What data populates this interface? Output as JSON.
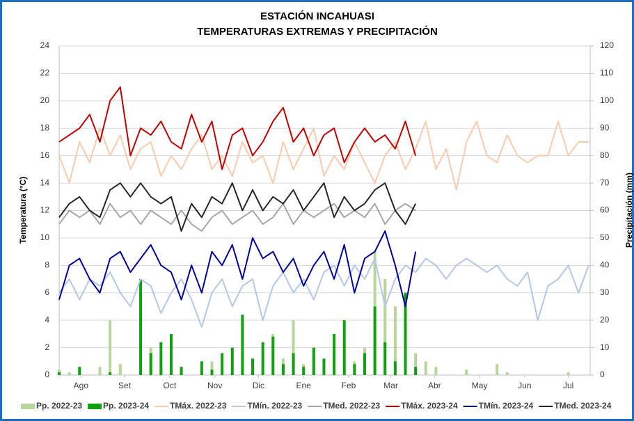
{
  "chart_data": {
    "type": "line",
    "title": "ESTACIÓN INCAHUASI",
    "subtitle": "TEMPERATURAS EXTREMAS Y PRECIPITACIÓN",
    "y_label": "Temperatura (°C)",
    "y2_label": "Precipitación (mm)",
    "x": [
      0,
      7,
      14,
      21,
      28,
      35,
      42,
      49,
      56,
      63,
      70,
      77,
      84,
      91,
      98,
      105,
      112,
      119,
      126,
      133,
      140,
      147,
      154,
      161,
      168,
      175,
      182,
      189,
      196,
      203,
      210,
      217,
      224,
      231,
      238,
      245,
      252,
      259,
      266,
      273,
      280,
      287,
      294,
      301,
      308,
      315,
      322,
      329,
      336,
      343,
      350,
      357,
      364
    ],
    "xlim": [
      0,
      365
    ],
    "xticks": [
      {
        "value": 15,
        "label": "Ago"
      },
      {
        "value": 45,
        "label": "Set"
      },
      {
        "value": 76,
        "label": "Oct"
      },
      {
        "value": 107,
        "label": "Nov"
      },
      {
        "value": 137,
        "label": "Dic"
      },
      {
        "value": 168,
        "label": "Ene"
      },
      {
        "value": 199,
        "label": "Feb"
      },
      {
        "value": 228,
        "label": "Mar"
      },
      {
        "value": 258,
        "label": "Abr"
      },
      {
        "value": 289,
        "label": "May"
      },
      {
        "value": 320,
        "label": "Jun"
      },
      {
        "value": 350,
        "label": "Jul"
      }
    ],
    "ylim": [
      0,
      24
    ],
    "yticks": [
      0,
      2,
      4,
      6,
      8,
      10,
      12,
      14,
      16,
      18,
      20,
      22,
      24
    ],
    "y2lim": [
      0,
      120
    ],
    "y2ticks": [
      0,
      10,
      20,
      30,
      40,
      50,
      60,
      70,
      80,
      90,
      100,
      110,
      120
    ],
    "grid": true,
    "legend": "bottom",
    "series": [
      {
        "name": "Pp. 2022-23",
        "type": "bar",
        "axis": "y2",
        "color": "#b8d59c",
        "values": [
          2,
          1,
          0,
          0,
          3,
          20,
          4,
          0,
          2,
          10,
          3,
          0,
          1,
          0,
          2,
          5,
          0,
          1,
          3,
          0,
          2,
          15,
          6,
          20,
          4,
          2,
          0,
          8,
          3,
          5,
          10,
          45,
          35,
          25,
          12,
          8,
          5,
          3,
          0,
          0,
          2,
          0,
          0,
          4,
          1,
          0,
          0,
          0,
          0,
          0,
          1,
          0,
          0
        ]
      },
      {
        "name": "Pp. 2023-24",
        "type": "bar",
        "axis": "y2",
        "color": "#12a012",
        "values": [
          1,
          0,
          3,
          0,
          0,
          1,
          0,
          0,
          35,
          8,
          12,
          15,
          3,
          0,
          5,
          2,
          8,
          10,
          22,
          6,
          12,
          14,
          4,
          8,
          3,
          10,
          6,
          15,
          20,
          4,
          8,
          25,
          12,
          5,
          30,
          3,
          null,
          null,
          null,
          null,
          null,
          null,
          null,
          null,
          null,
          null,
          null,
          null,
          null,
          null,
          null,
          null,
          null
        ]
      },
      {
        "name": "TMáx. 2022-23",
        "type": "line",
        "color": "#f8cbad",
        "values": [
          16,
          14,
          17,
          15.5,
          18,
          16,
          17.5,
          15,
          16.5,
          17,
          14.5,
          16,
          15,
          16.5,
          17.5,
          15,
          16,
          14.5,
          17,
          15.5,
          16,
          14,
          17,
          15,
          16.5,
          18,
          14.5,
          16,
          15,
          17,
          15.5,
          14,
          16,
          17,
          15,
          16.5,
          18.5,
          15,
          16.5,
          13.5,
          17,
          18.5,
          16,
          15.5,
          17.5,
          16,
          15.5,
          16,
          16,
          18.5,
          16,
          17,
          17
        ]
      },
      {
        "name": "TMín. 2022-23",
        "type": "line",
        "color": "#b4c7e7",
        "values": [
          6,
          7,
          5.5,
          7,
          6.5,
          7.5,
          6,
          5,
          7,
          6.5,
          4.5,
          6,
          7,
          5.5,
          3.5,
          6,
          7,
          5,
          6.5,
          7,
          4,
          6.5,
          7.5,
          6,
          7,
          5.5,
          7.5,
          8,
          6.5,
          8,
          7,
          8.5,
          5,
          7,
          8,
          7.5,
          8.5,
          8,
          7,
          8,
          8.5,
          8,
          7.5,
          8,
          7,
          6.5,
          7.5,
          4,
          6.5,
          7,
          8,
          6,
          8
        ]
      },
      {
        "name": "TMed. 2022-23",
        "type": "line",
        "color": "#a6a6a6",
        "values": [
          11,
          12,
          11.5,
          12,
          11,
          12.5,
          11.5,
          12,
          11,
          12,
          11.5,
          11,
          12,
          11,
          10.5,
          11.5,
          12,
          11,
          11.5,
          12,
          11,
          11.5,
          12.5,
          11,
          12,
          11.5,
          12,
          12.5,
          11.5,
          12,
          11.5,
          12.5,
          11,
          12,
          12.5,
          12,
          null,
          null,
          null,
          null,
          null,
          null,
          null,
          null,
          null,
          null,
          null,
          null,
          null,
          null,
          null,
          null,
          null
        ]
      },
      {
        "name": "TMáx. 2023-24",
        "type": "line",
        "color": "#c00000",
        "values": [
          17,
          17.5,
          18,
          19,
          17,
          20,
          21,
          16,
          18,
          17.5,
          18.5,
          17,
          16.5,
          19,
          17,
          18.5,
          15,
          17.5,
          18,
          16,
          17,
          18.5,
          19.5,
          17,
          18,
          16,
          17.5,
          18,
          15.5,
          17,
          18,
          17,
          17.5,
          16.5,
          18.5,
          16,
          null,
          null,
          null,
          null,
          null,
          null,
          null,
          null,
          null,
          null,
          null,
          null,
          null,
          null,
          null,
          null,
          null
        ]
      },
      {
        "name": "TMín. 2023-24",
        "type": "line",
        "color": "#00009c",
        "values": [
          5.5,
          8,
          8.5,
          7,
          6,
          8.5,
          9,
          7.5,
          8.5,
          9.5,
          8,
          7.5,
          5.5,
          8,
          6,
          9,
          8,
          9.5,
          7,
          10,
          8.5,
          9,
          7.5,
          8.5,
          6.5,
          8,
          9,
          7,
          9.5,
          6,
          8.5,
          9,
          10.5,
          8,
          5,
          9,
          null,
          null,
          null,
          null,
          null,
          null,
          null,
          null,
          null,
          null,
          null,
          null,
          null,
          null,
          null,
          null,
          null
        ]
      },
      {
        "name": "TMed. 2023-24",
        "type": "line",
        "color": "#262626",
        "values": [
          11.5,
          12.5,
          13,
          12,
          11.5,
          13.5,
          14,
          13,
          14,
          13,
          12.5,
          13,
          10.5,
          12.5,
          11.5,
          13,
          12.5,
          14,
          12,
          13.5,
          12,
          13,
          12.5,
          13.5,
          12,
          13,
          14,
          11.5,
          13,
          12,
          12.5,
          13.5,
          14,
          12,
          11,
          12.5,
          null,
          null,
          null,
          null,
          null,
          null,
          null,
          null,
          null,
          null,
          null,
          null,
          null,
          null,
          null,
          null,
          null
        ]
      }
    ]
  }
}
